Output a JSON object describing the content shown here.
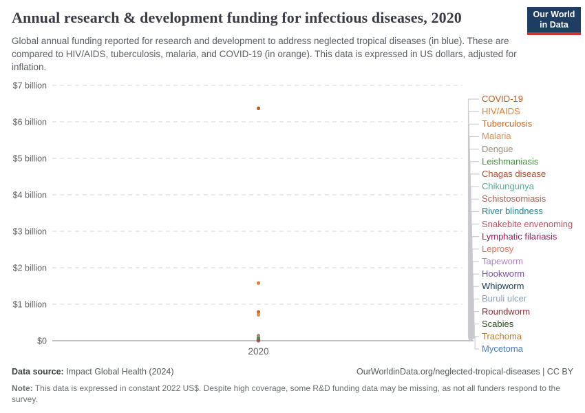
{
  "header": {
    "title": "Annual research & development funding for infectious diseases, 2020",
    "subtitle": "Global annual funding reported for research and development to address neglected tropical diseases (in blue). These are compared to HIV/AIDS, tuberculosis, malaria, and COVID-19 (in orange). This data is expressed in US dollars, adjusted for inflation.",
    "logo": {
      "line1": "Our World",
      "line2": "in Data",
      "bg_color": "#1d3d63",
      "accent_color": "#ce352c"
    }
  },
  "chart_data": {
    "type": "scatter",
    "title": "Annual research & development funding for infectious diseases, 2020",
    "x": [
      2020
    ],
    "x_tick_label": "2020",
    "xlabel": "",
    "ylabel": "",
    "unit": "US$ billions",
    "ylim": [
      0,
      7
    ],
    "y_tick_labels": [
      "$0",
      "$1 billion",
      "$2 billion",
      "$3 billion",
      "$4 billion",
      "$5 billion",
      "$6 billion",
      "$7 billion"
    ],
    "grid": "horizontal-dashed",
    "legend_position": "right",
    "series": [
      {
        "name": "COVID-19",
        "color": "#C35A1D",
        "values": [
          6.37
        ]
      },
      {
        "name": "HIV/AIDS",
        "color": "#E87E33",
        "values": [
          1.58
        ]
      },
      {
        "name": "Tuberculosis",
        "color": "#D4681C",
        "values": [
          0.79
        ]
      },
      {
        "name": "Malaria",
        "color": "#E08E52",
        "values": [
          0.71
        ]
      },
      {
        "name": "Dengue",
        "color": "#9C8B79",
        "values": [
          0.14
        ]
      },
      {
        "name": "Leishmaniasis",
        "color": "#4C8C43",
        "values": [
          0.08
        ]
      },
      {
        "name": "Chagas disease",
        "color": "#B44C26",
        "values": [
          0.05
        ]
      },
      {
        "name": "Chikungunya",
        "color": "#58AC8C",
        "values": [
          0.046
        ]
      },
      {
        "name": "Schistosomiasis",
        "color": "#AA5F52",
        "values": [
          0.04
        ]
      },
      {
        "name": "River blindness",
        "color": "#1F7F8C",
        "values": [
          0.036
        ]
      },
      {
        "name": "Snakebite envenoming",
        "color": "#C15065",
        "values": [
          0.03
        ]
      },
      {
        "name": "Lymphatic filariasis",
        "color": "#9A1D60",
        "values": [
          0.026
        ]
      },
      {
        "name": "Leprosy",
        "color": "#E56E5A",
        "values": [
          0.02
        ]
      },
      {
        "name": "Tapeworm",
        "color": "#B285C8",
        "values": [
          0.016
        ]
      },
      {
        "name": "Hookworm",
        "color": "#7A4FA8",
        "values": [
          0.013
        ]
      },
      {
        "name": "Whipworm",
        "color": "#1D3D63",
        "values": [
          0.012
        ]
      },
      {
        "name": "Buruli ulcer",
        "color": "#8B9CB5",
        "values": [
          0.01
        ]
      },
      {
        "name": "Roundworm",
        "color": "#883039",
        "values": [
          0.008
        ]
      },
      {
        "name": "Scabies",
        "color": "#2C4C1E",
        "values": [
          0.005
        ]
      },
      {
        "name": "Trachoma",
        "color": "#C4792E",
        "values": [
          0.004
        ]
      },
      {
        "name": "Mycetoma",
        "color": "#477CC8",
        "values": [
          0.002
        ]
      }
    ]
  },
  "footer": {
    "data_source_label": "Data source:",
    "data_source_value": " Impact Global Health (2024)",
    "link": "OurWorldinData.org/neglected-tropical-diseases | CC BY",
    "note_label": "Note:",
    "note_text": " This data is expressed in constant 2022 US$. Despite high coverage, some R&D funding data may be missing, as not all funders respond to the survey."
  }
}
